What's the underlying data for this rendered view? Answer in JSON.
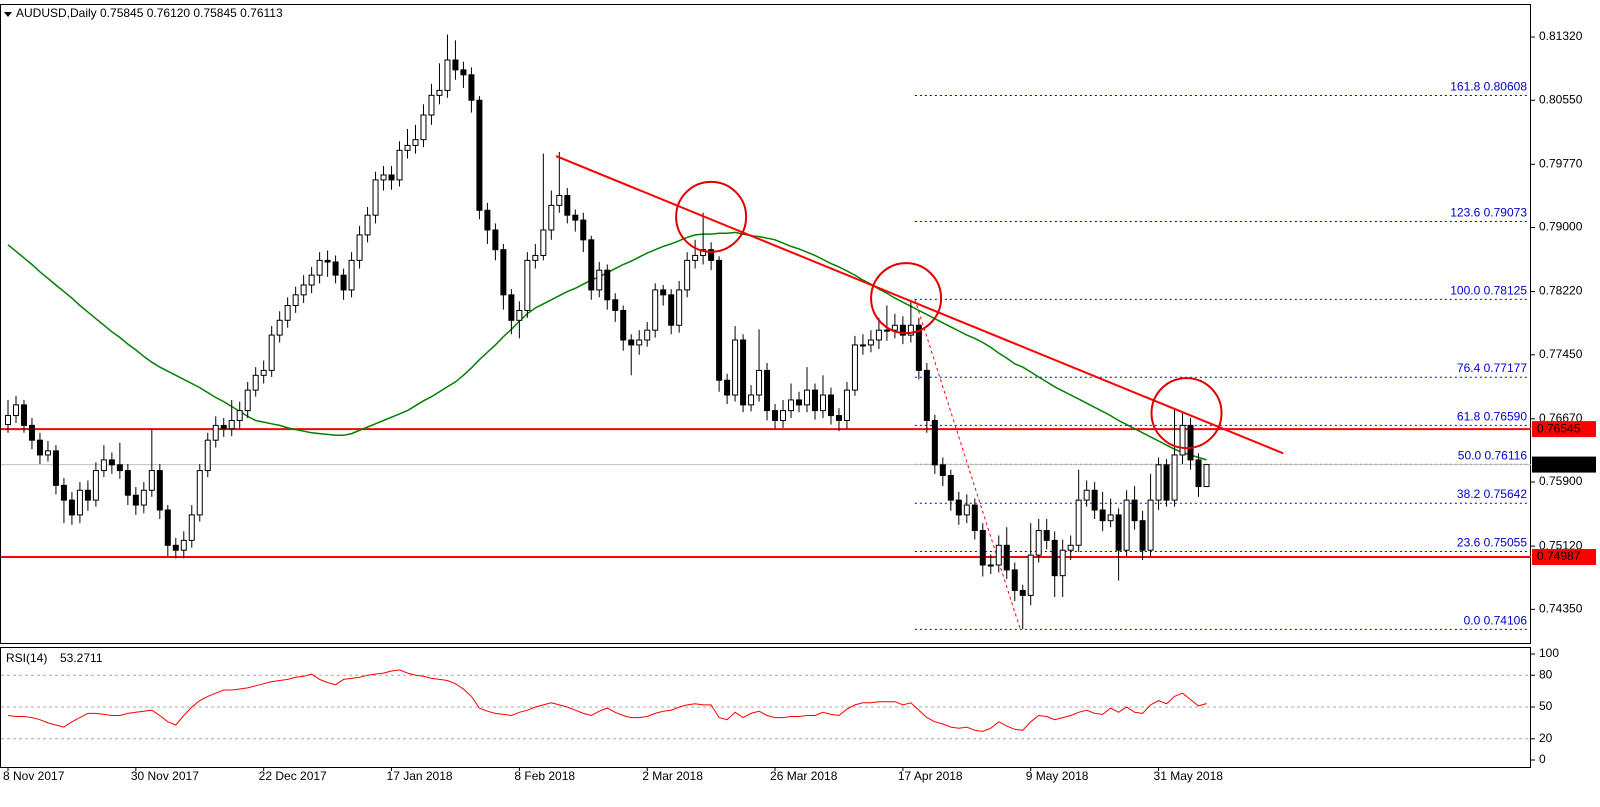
{
  "chart_data": {
    "type": "candlestick",
    "header": "AUDUSD,Daily  0.75845 0.76120 0.75845 0.76113",
    "categories": [
      "8 Nov 2017",
      null,
      null,
      null,
      null,
      null,
      null,
      null,
      null,
      null,
      null,
      null,
      null,
      null,
      null,
      null,
      "30 Nov 2017",
      null,
      null,
      null,
      null,
      null,
      null,
      null,
      null,
      null,
      null,
      null,
      null,
      null,
      null,
      null,
      "22 Dec 2017",
      null,
      null,
      null,
      null,
      null,
      null,
      null,
      null,
      null,
      null,
      null,
      null,
      null,
      null,
      null,
      "17 Jan 2018",
      null,
      null,
      null,
      null,
      null,
      null,
      null,
      null,
      null,
      null,
      null,
      null,
      null,
      null,
      null,
      "8 Feb 2018",
      null,
      null,
      null,
      null,
      null,
      null,
      null,
      null,
      null,
      null,
      null,
      null,
      null,
      null,
      null,
      "2 Mar 2018",
      null,
      null,
      null,
      null,
      null,
      null,
      null,
      null,
      null,
      null,
      null,
      null,
      null,
      null,
      null,
      "26 Mar 2018",
      null,
      null,
      null,
      null,
      null,
      null,
      null,
      null,
      null,
      null,
      null,
      null,
      null,
      null,
      null,
      "17 Apr 2018",
      null,
      null,
      null,
      null,
      null,
      null,
      null,
      null,
      null,
      null,
      null,
      null,
      null,
      null,
      null,
      "9 May 2018",
      null,
      null,
      null,
      null,
      null,
      null,
      null,
      null,
      null,
      null,
      null,
      null,
      null,
      null,
      null,
      "31 May 2018",
      null,
      null,
      null,
      null,
      null,
      null
    ],
    "open": [
      0.766,
      0.7671,
      0.7684,
      0.7659,
      0.7641,
      0.7623,
      0.7628,
      0.7586,
      0.7568,
      0.755,
      0.758,
      0.7568,
      0.7604,
      0.7617,
      0.7611,
      0.7604,
      0.7574,
      0.7562,
      0.758,
      0.7604,
      0.7556,
      0.7513,
      0.7507,
      0.7519,
      0.755,
      0.7604,
      0.7641,
      0.7659,
      0.7655,
      0.7665,
      0.7677,
      0.7702,
      0.772,
      0.7726,
      0.7769,
      0.7787,
      0.7805,
      0.7818,
      0.783,
      0.7842,
      0.786,
      0.7858,
      0.7842,
      0.7824,
      0.786,
      0.7891,
      0.7915,
      0.7958,
      0.7964,
      0.7958,
      0.7994,
      0.8,
      0.8007,
      0.8037,
      0.8061,
      0.8067,
      0.8104,
      0.8092,
      0.8086,
      0.8055,
      0.7921,
      0.7897,
      0.7873,
      0.7818,
      0.7787,
      0.7799,
      0.786,
      0.7866,
      0.7897,
      0.7927,
      0.7939,
      0.7915,
      0.7909,
      0.7885,
      0.7824,
      0.7848,
      0.7812,
      0.7799,
      0.7763,
      0.7757,
      0.7763,
      0.7775,
      0.7824,
      0.7818,
      0.7781,
      0.7824,
      0.786,
      0.7866,
      0.7873,
      0.786,
      0.7714,
      0.7696,
      0.7763,
      0.7684,
      0.7696,
      0.7726,
      0.7677,
      0.7665,
      0.7677,
      0.769,
      0.7684,
      0.7702,
      0.7677,
      0.7696,
      0.7671,
      0.7665,
      0.7702,
      0.7757,
      0.7757,
      0.7763,
      0.7775,
      0.7775,
      0.7781,
      0.7769,
      0.7781,
      0.7726,
      0.7665,
      0.7611,
      0.7598,
      0.7568,
      0.755,
      0.7562,
      0.7531,
      0.7489,
      0.7489,
      0.7513,
      0.7483,
      0.7458,
      0.7452,
      0.7501,
      0.7531,
      0.7519,
      0.7476,
      0.7507,
      0.7513,
      0.7568,
      0.758,
      0.7556,
      0.7543,
      0.755,
      0.7507,
      0.7568,
      0.7543,
      0.7507,
      0.7568,
      0.7611,
      0.7568,
      0.7623,
      0.7659,
      0.7617,
      0.75845
    ],
    "high": [
      0.769,
      0.7695,
      0.769,
      0.7668,
      0.765,
      0.764,
      0.7635,
      0.7595,
      0.7578,
      0.759,
      0.7592,
      0.7614,
      0.7635,
      0.7626,
      0.7638,
      0.7612,
      0.7584,
      0.759,
      0.7655,
      0.7612,
      0.7562,
      0.7522,
      0.753,
      0.7562,
      0.7612,
      0.765,
      0.767,
      0.7668,
      0.769,
      0.7688,
      0.7712,
      0.773,
      0.7738,
      0.778,
      0.7798,
      0.7815,
      0.7828,
      0.7842,
      0.7852,
      0.787,
      0.7872,
      0.7866,
      0.785,
      0.787,
      0.7902,
      0.7925,
      0.7968,
      0.7975,
      0.7975,
      0.8005,
      0.802,
      0.8025,
      0.805,
      0.8075,
      0.81,
      0.8135,
      0.8128,
      0.8102,
      0.8095,
      0.806,
      0.793,
      0.7905,
      0.788,
      0.7825,
      0.781,
      0.787,
      0.788,
      0.799,
      0.7945,
      0.7992,
      0.7948,
      0.7922,
      0.7918,
      0.789,
      0.7858,
      0.7855,
      0.782,
      0.7805,
      0.777,
      0.7775,
      0.7785,
      0.7832,
      0.783,
      0.7825,
      0.7835,
      0.787,
      0.7885,
      0.7918,
      0.7882,
      0.7865,
      0.7722,
      0.778,
      0.777,
      0.7708,
      0.7776,
      0.7735,
      0.7685,
      0.769,
      0.771,
      0.77,
      0.773,
      0.771,
      0.772,
      0.7705,
      0.768,
      0.7712,
      0.7768,
      0.777,
      0.7775,
      0.779,
      0.7805,
      0.7795,
      0.7792,
      0.7812,
      0.779,
      0.7735,
      0.7672,
      0.762,
      0.7605,
      0.7578,
      0.7575,
      0.757,
      0.754,
      0.7502,
      0.7525,
      0.7535,
      0.7492,
      0.7465,
      0.754,
      0.7545,
      0.7545,
      0.753,
      0.752,
      0.7525,
      0.7605,
      0.7592,
      0.759,
      0.7578,
      0.757,
      0.7558,
      0.758,
      0.7585,
      0.7555,
      0.76,
      0.762,
      0.7618,
      0.768,
      0.7675,
      0.7668,
      0.7625,
      0.7612
    ],
    "low": [
      0.765,
      0.7662,
      0.765,
      0.763,
      0.7612,
      0.7615,
      0.7575,
      0.754,
      0.7538,
      0.754,
      0.7555,
      0.756,
      0.7596,
      0.76,
      0.7594,
      0.7562,
      0.755,
      0.7552,
      0.7572,
      0.7545,
      0.75,
      0.7497,
      0.7497,
      0.751,
      0.7542,
      0.7596,
      0.7632,
      0.7645,
      0.7646,
      0.7655,
      0.7668,
      0.7694,
      0.771,
      0.7718,
      0.776,
      0.7778,
      0.7796,
      0.7808,
      0.782,
      0.7832,
      0.784,
      0.7832,
      0.7812,
      0.7815,
      0.785,
      0.7882,
      0.7905,
      0.7945,
      0.7946,
      0.795,
      0.7984,
      0.799,
      0.7998,
      0.8025,
      0.805,
      0.8058,
      0.808,
      0.807,
      0.804,
      0.791,
      0.788,
      0.786,
      0.78,
      0.777,
      0.7765,
      0.779,
      0.785,
      0.786,
      0.7885,
      0.7918,
      0.7905,
      0.7895,
      0.787,
      0.7812,
      0.7815,
      0.78,
      0.7785,
      0.775,
      0.772,
      0.7745,
      0.7755,
      0.7766,
      0.7805,
      0.777,
      0.7772,
      0.7815,
      0.785,
      0.7855,
      0.7848,
      0.77,
      0.7685,
      0.7688,
      0.7675,
      0.7676,
      0.7688,
      0.7665,
      0.7655,
      0.7656,
      0.7668,
      0.7675,
      0.7675,
      0.7666,
      0.7668,
      0.766,
      0.7652,
      0.7655,
      0.7695,
      0.7745,
      0.7748,
      0.7752,
      0.7762,
      0.7765,
      0.7758,
      0.776,
      0.7715,
      0.765,
      0.76,
      0.7585,
      0.7555,
      0.7538,
      0.754,
      0.752,
      0.7475,
      0.7478,
      0.748,
      0.7472,
      0.7445,
      0.7411,
      0.744,
      0.7492,
      0.7508,
      0.745,
      0.745,
      0.7495,
      0.7505,
      0.756,
      0.7545,
      0.753,
      0.7535,
      0.747,
      0.75,
      0.7532,
      0.7495,
      0.75,
      0.7556,
      0.756,
      0.756,
      0.7612,
      0.7605,
      0.7572,
      0.75845
    ],
    "close": [
      0.7671,
      0.7684,
      0.7659,
      0.7641,
      0.7623,
      0.7628,
      0.7586,
      0.7568,
      0.755,
      0.758,
      0.7568,
      0.7604,
      0.7617,
      0.7611,
      0.7604,
      0.7574,
      0.7562,
      0.758,
      0.7604,
      0.7556,
      0.7513,
      0.7507,
      0.7519,
      0.755,
      0.7604,
      0.7641,
      0.7659,
      0.7655,
      0.7665,
      0.7677,
      0.7702,
      0.772,
      0.7726,
      0.7769,
      0.7787,
      0.7805,
      0.7818,
      0.783,
      0.7842,
      0.786,
      0.7858,
      0.7842,
      0.7824,
      0.786,
      0.7891,
      0.7915,
      0.7958,
      0.7964,
      0.7958,
      0.7994,
      0.8,
      0.8007,
      0.8037,
      0.8061,
      0.8067,
      0.8104,
      0.8092,
      0.8086,
      0.8055,
      0.7921,
      0.7897,
      0.7873,
      0.7818,
      0.7787,
      0.7799,
      0.786,
      0.7866,
      0.7897,
      0.7927,
      0.7939,
      0.7915,
      0.7909,
      0.7885,
      0.7824,
      0.7848,
      0.7812,
      0.7799,
      0.7763,
      0.7757,
      0.7763,
      0.7775,
      0.7824,
      0.7818,
      0.7781,
      0.7824,
      0.786,
      0.7866,
      0.7873,
      0.786,
      0.7714,
      0.7696,
      0.7763,
      0.7684,
      0.7696,
      0.7726,
      0.7677,
      0.7665,
      0.7677,
      0.769,
      0.7684,
      0.7702,
      0.7677,
      0.7696,
      0.7671,
      0.7665,
      0.7702,
      0.7757,
      0.7757,
      0.7763,
      0.7775,
      0.7775,
      0.7781,
      0.7769,
      0.7781,
      0.7726,
      0.7665,
      0.7611,
      0.7598,
      0.7568,
      0.755,
      0.7562,
      0.7531,
      0.7489,
      0.7489,
      0.7513,
      0.7483,
      0.7458,
      0.7452,
      0.7501,
      0.7531,
      0.7519,
      0.7476,
      0.7507,
      0.7513,
      0.7568,
      0.758,
      0.7556,
      0.7543,
      0.755,
      0.7507,
      0.7568,
      0.7543,
      0.7507,
      0.7568,
      0.7611,
      0.7568,
      0.7623,
      0.7659,
      0.7617,
      0.75845,
      0.76113
    ],
    "ylim": [
      0.7394,
      0.8171
    ],
    "yticks": [
      {
        "value": 0.8132,
        "label": "0.81320"
      },
      {
        "value": 0.8055,
        "label": "0.80550"
      },
      {
        "value": 0.7977,
        "label": "0.79770"
      },
      {
        "value": 0.79,
        "label": "0.79000"
      },
      {
        "value": 0.7822,
        "label": "0.78220"
      },
      {
        "value": 0.7745,
        "label": "0.77450"
      },
      {
        "value": 0.7667,
        "label": "0.76670"
      },
      {
        "value": 0.759,
        "label": "0.75900"
      },
      {
        "value": 0.7512,
        "label": "0.75120"
      },
      {
        "value": 0.7435,
        "label": "0.74350"
      }
    ],
    "moving_average": {
      "color": "#008000",
      "values": [
        0.7879,
        0.7871,
        0.7863,
        0.7855,
        0.7846,
        0.7838,
        0.783,
        0.7822,
        0.7814,
        0.7805,
        0.7797,
        0.7789,
        0.7781,
        0.7773,
        0.7766,
        0.7758,
        0.7751,
        0.7743,
        0.7736,
        0.773,
        0.7725,
        0.772,
        0.7715,
        0.771,
        0.7705,
        0.7699,
        0.7693,
        0.7688,
        0.7682,
        0.7676,
        0.767,
        0.7665,
        0.7663,
        0.7661,
        0.7659,
        0.7656,
        0.7654,
        0.7652,
        0.765,
        0.7649,
        0.7648,
        0.7647,
        0.7647,
        0.7649,
        0.7653,
        0.7657,
        0.7661,
        0.7665,
        0.7669,
        0.7673,
        0.7677,
        0.7683,
        0.7689,
        0.7694,
        0.77,
        0.7706,
        0.7712,
        0.772,
        0.7729,
        0.7739,
        0.7748,
        0.7757,
        0.7767,
        0.7776,
        0.7786,
        0.7795,
        0.7802,
        0.7807,
        0.7812,
        0.7817,
        0.7822,
        0.7826,
        0.7831,
        0.7836,
        0.784,
        0.7845,
        0.785,
        0.7855,
        0.7859,
        0.7864,
        0.7869,
        0.7873,
        0.7877,
        0.788,
        0.7884,
        0.7888,
        0.7891,
        0.7892,
        0.7892,
        0.7893,
        0.7893,
        0.7894,
        0.7892,
        0.789,
        0.7889,
        0.7887,
        0.7885,
        0.7881,
        0.7877,
        0.7874,
        0.787,
        0.7866,
        0.7861,
        0.7856,
        0.7852,
        0.7847,
        0.7842,
        0.7836,
        0.7831,
        0.7825,
        0.782,
        0.7814,
        0.7809,
        0.7804,
        0.7799,
        0.7794,
        0.7789,
        0.7784,
        0.7779,
        0.7774,
        0.7769,
        0.7765,
        0.776,
        0.7754,
        0.7747,
        0.7741,
        0.7734,
        0.773,
        0.7724,
        0.7718,
        0.7712,
        0.7706,
        0.7701,
        0.7696,
        0.7691,
        0.7686,
        0.7681,
        0.7676,
        0.7671,
        0.7665,
        0.766,
        0.7655,
        0.765,
        0.7645,
        0.764,
        0.7635,
        0.763,
        0.7626,
        0.7623,
        0.762,
        0.7617
      ]
    },
    "horizontal_lines": [
      {
        "value": 0.76545,
        "label": "0.76545",
        "color": "#ff0000"
      },
      {
        "value": 0.74987,
        "label": "0.74987",
        "color": "#ff0000"
      }
    ],
    "trendline": {
      "color": "#ff0000",
      "x": [
        68.6,
        159.6
      ],
      "y": [
        0.7987,
        0.7625
      ]
    },
    "circles": [
      {
        "x": 88,
        "y": 0.7913
      },
      {
        "x": 112.4,
        "y": 0.7814
      },
      {
        "x": 147.5,
        "y": 0.7674
      }
    ],
    "fibonacci": {
      "color": "#0000cc",
      "x": [
        113.5,
        126.7
      ],
      "levels": [
        {
          "ratio": "161.8",
          "value": 0.80608,
          "label": "0.80608"
        },
        {
          "ratio": "123.6",
          "value": 0.79073,
          "label": "0.79073"
        },
        {
          "ratio": "100.0",
          "value": 0.78125,
          "label": "0.78125"
        },
        {
          "ratio": "76.4",
          "value": 0.77177,
          "label": "0.77177"
        },
        {
          "ratio": "61.8",
          "value": 0.7659,
          "label": "0.76590"
        },
        {
          "ratio": "50.0",
          "value": 0.76116,
          "label": "0.76116"
        },
        {
          "ratio": "38.2",
          "value": 0.75642,
          "label": "0.75642"
        },
        {
          "ratio": "23.6",
          "value": 0.75055,
          "label": "0.75055"
        },
        {
          "ratio": "0.0",
          "value": 0.74106,
          "label": "0.74106"
        }
      ]
    },
    "indicator": {
      "type": "line",
      "title": "RSI(14)",
      "color": "#ff0000",
      "ylim": [
        0,
        100
      ],
      "yticks": [
        0,
        20,
        50,
        80,
        100
      ],
      "values": [
        42,
        41,
        41,
        40,
        38,
        35,
        33,
        31,
        36,
        40,
        44,
        44,
        43,
        42,
        42,
        44,
        45,
        46,
        47,
        42,
        36,
        33,
        42,
        50,
        56,
        60,
        63,
        66,
        66,
        67,
        68,
        70,
        72,
        74,
        75,
        76,
        78,
        79,
        81,
        76,
        73,
        71,
        76,
        77,
        78,
        80,
        81,
        82,
        84,
        85,
        82,
        80,
        79,
        77,
        76,
        75,
        72,
        67,
        60,
        49,
        46,
        44,
        43,
        42,
        45,
        47,
        50,
        52,
        54,
        52,
        50,
        47,
        44,
        42,
        46,
        49,
        45,
        42,
        40,
        40,
        41,
        44,
        46,
        47,
        50,
        52,
        53,
        52,
        52,
        40,
        38,
        45,
        40,
        44,
        46,
        42,
        40,
        40,
        41,
        41,
        42,
        42,
        45,
        43,
        42,
        48,
        52,
        54,
        54,
        55,
        55,
        55,
        52,
        54,
        47,
        40,
        36,
        34,
        31,
        30,
        31,
        28,
        27,
        30,
        36,
        32,
        29,
        28,
        36,
        42,
        41,
        38,
        40,
        42,
        45,
        47,
        44,
        43,
        49,
        45,
        50,
        45,
        44,
        52,
        56,
        53,
        60,
        63,
        57,
        51,
        53.2711
      ]
    }
  }
}
